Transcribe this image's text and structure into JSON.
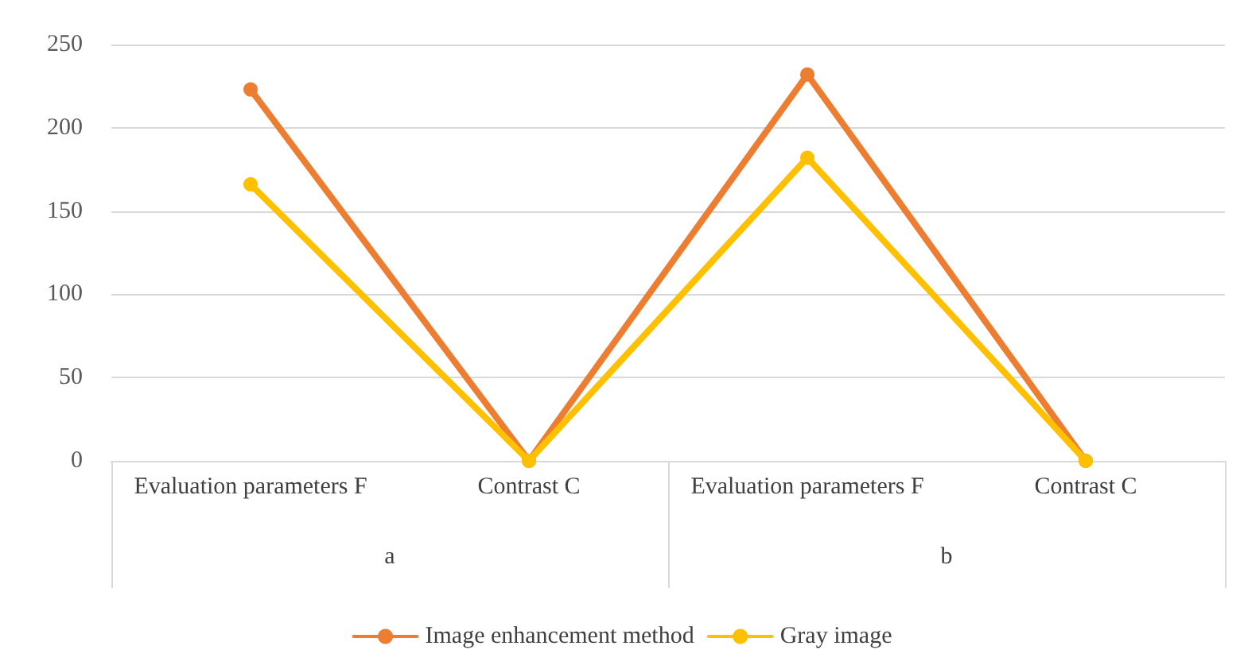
{
  "chart_data": {
    "type": "line",
    "categories": [
      "Evaluation parameters F",
      "Contrast C",
      "Evaluation parameters F",
      "Contrast C"
    ],
    "series": [
      {
        "name": "Image enhancement method",
        "color": "#ed7d31",
        "values": [
          223,
          0,
          232,
          0
        ]
      },
      {
        "name": "Gray image",
        "color": "#ffc000",
        "values": [
          166,
          0,
          182,
          0
        ]
      }
    ],
    "annotations": [
      "a",
      "b"
    ],
    "ylim": [
      0,
      250
    ],
    "yticks": [
      0,
      50,
      100,
      150,
      200,
      250
    ],
    "grid": "y",
    "legend": "bottom",
    "marker": "circle",
    "line_style": "solid"
  }
}
